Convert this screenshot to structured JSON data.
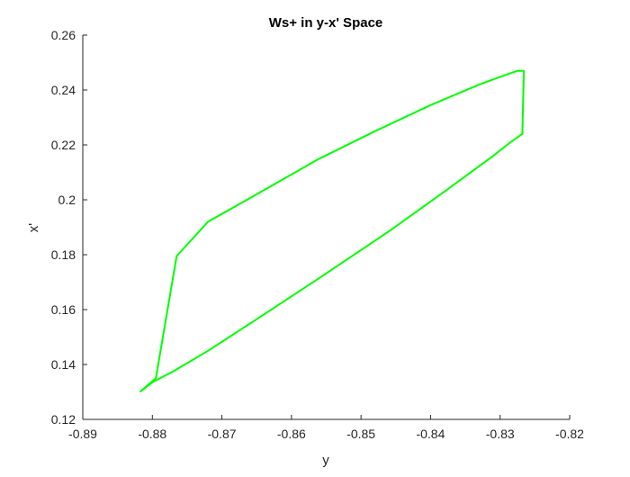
{
  "chart_data": {
    "type": "line",
    "title": "Ws+ in y-x' Space",
    "xlabel": "y",
    "ylabel": "x'",
    "xlim": [
      -0.89,
      -0.82
    ],
    "ylim": [
      0.12,
      0.26
    ],
    "xticks": [
      "-0.89",
      "-0.88",
      "-0.87",
      "-0.86",
      "-0.85",
      "-0.84",
      "-0.83",
      "-0.82"
    ],
    "yticks": [
      "0.12",
      "0.14",
      "0.16",
      "0.18",
      "0.2",
      "0.22",
      "0.24",
      "0.26"
    ],
    "grid": false,
    "series": [
      {
        "color": "#00ff00",
        "x": [
          -0.8818,
          -0.88,
          -0.877,
          -0.872,
          -0.865,
          -0.856,
          -0.846,
          -0.838,
          -0.831,
          -0.8285,
          -0.8268,
          -0.8266,
          -0.8266,
          -0.8275,
          -0.8292,
          -0.833,
          -0.84,
          -0.848,
          -0.856,
          -0.865,
          -0.872,
          -0.8765,
          -0.8795,
          -0.8818
        ],
        "y": [
          0.13,
          0.1335,
          0.1375,
          0.145,
          0.1565,
          0.1715,
          0.1885,
          0.203,
          0.216,
          0.221,
          0.224,
          0.246,
          0.247,
          0.247,
          0.2455,
          0.242,
          0.2345,
          0.225,
          0.215,
          0.202,
          0.192,
          0.1795,
          0.135,
          0.13
        ]
      }
    ]
  }
}
